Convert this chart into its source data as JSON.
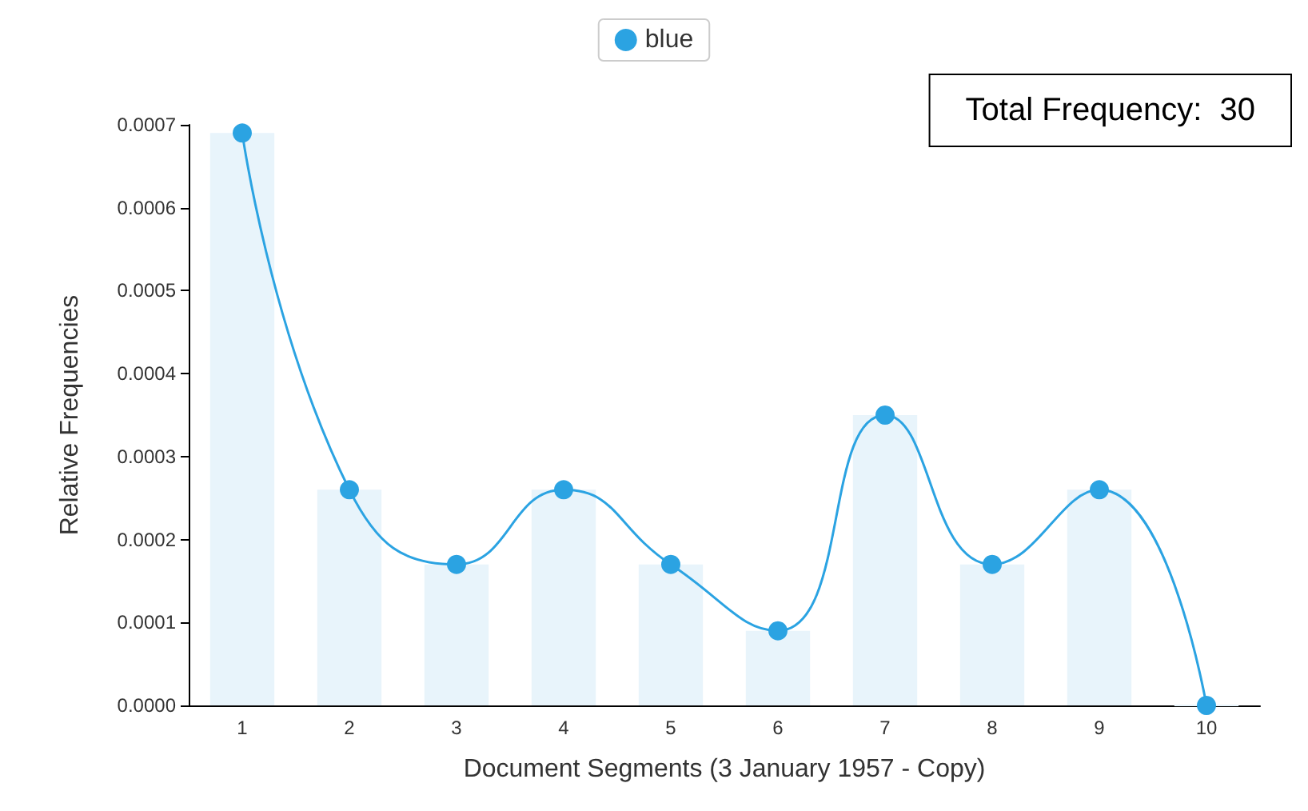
{
  "chart_data": {
    "type": "line",
    "xlabel": "Document Segments (3 January 1957 - Copy)",
    "ylabel": "Relative Frequencies",
    "categories": [
      "1",
      "2",
      "3",
      "4",
      "5",
      "6",
      "7",
      "8",
      "9",
      "10"
    ],
    "series": [
      {
        "type": "bar",
        "color": "#e8f4fb",
        "values": [
          0.00069,
          0.00026,
          0.00017,
          0.00026,
          0.00017,
          9e-05,
          0.00035,
          0.00017,
          0.00026,
          0
        ]
      },
      {
        "name": "blue",
        "color": "#2ba3e2",
        "values": [
          0.00069,
          0.00026,
          0.00017,
          0.00026,
          0.00017,
          9e-05,
          0.00035,
          0.00017,
          0.00026,
          0
        ]
      }
    ],
    "ylim": [
      0,
      0.0007
    ],
    "yticks": [
      {
        "value": 0,
        "label": "0.0000"
      },
      {
        "value": 0.0001,
        "label": "0.0001"
      },
      {
        "value": 0.0002,
        "label": "0.0002"
      },
      {
        "value": 0.0003,
        "label": "0.0003"
      },
      {
        "value": 0.0004,
        "label": "0.0004"
      },
      {
        "value": 0.0005,
        "label": "0.0005"
      },
      {
        "value": 0.0006,
        "label": "0.0006"
      },
      {
        "value": 0.0007,
        "label": "0.0007"
      }
    ],
    "annotations": [
      "Total Frequency:  30"
    ],
    "legend": "top",
    "grid": false,
    "marker": "circle",
    "line_style": "solid"
  }
}
